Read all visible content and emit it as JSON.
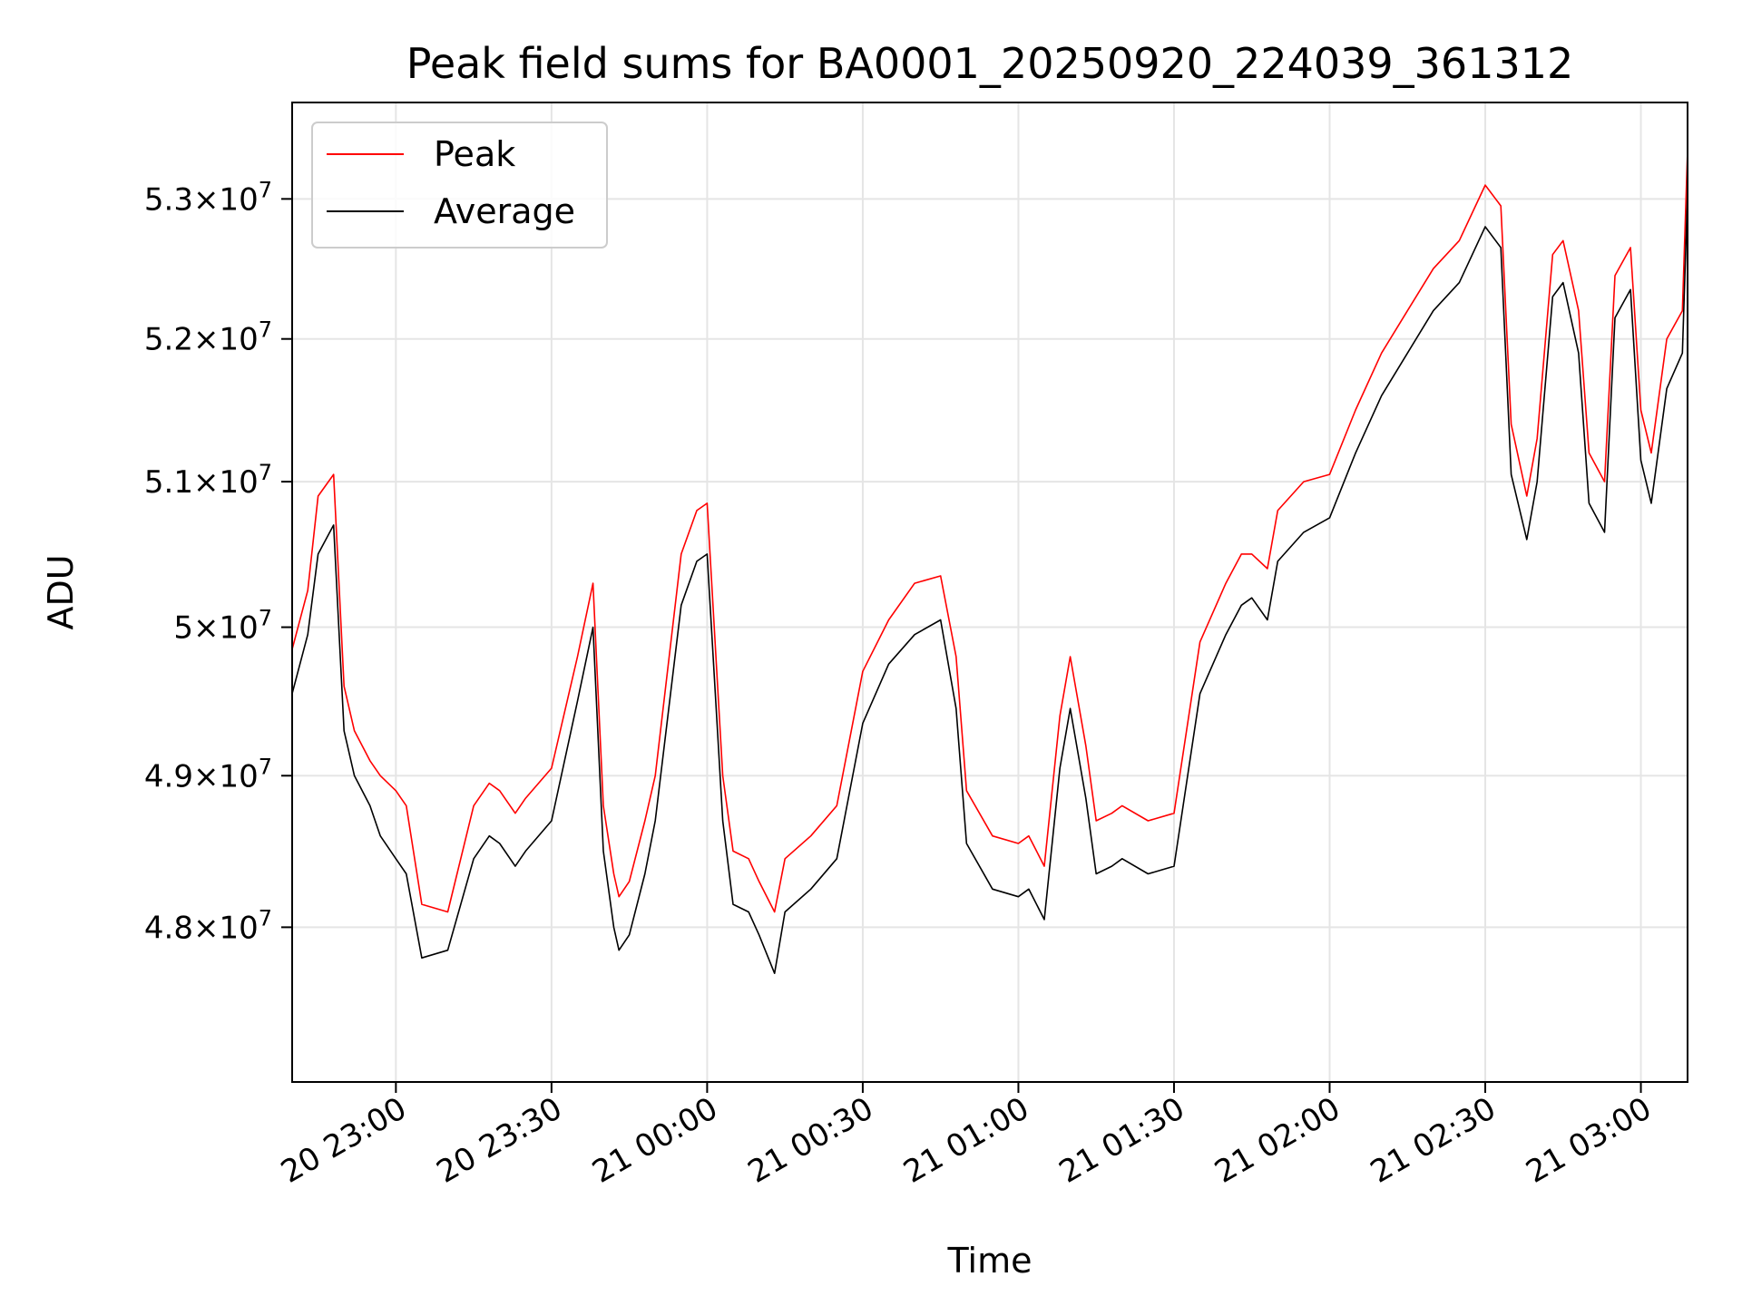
{
  "chart_data": {
    "type": "line",
    "title": "Peak field sums for BA0001_20250920_224039_361312",
    "xlabel": "Time",
    "ylabel": "ADU",
    "x_start": "2025-09-20 22:40",
    "x_end": "2025-09-21 03:09",
    "xlim": [
      "2025-09-20 22:40",
      "2025-09-21 03:09"
    ],
    "ylim": [
      47.0,
      53.7
    ],
    "y_unit_multiplier": "×10^7",
    "y_scale": "log",
    "grid": true,
    "legend_position": "upper-left",
    "x_ticks": [
      {
        "t": "2025-09-20 23:00",
        "label": "20 23:00"
      },
      {
        "t": "2025-09-20 23:30",
        "label": "20 23:30"
      },
      {
        "t": "2025-09-21 00:00",
        "label": "21 00:00"
      },
      {
        "t": "2025-09-21 00:30",
        "label": "21 00:30"
      },
      {
        "t": "2025-09-21 01:00",
        "label": "21 01:00"
      },
      {
        "t": "2025-09-21 01:30",
        "label": "21 01:30"
      },
      {
        "t": "2025-09-21 02:00",
        "label": "21 02:00"
      },
      {
        "t": "2025-09-21 02:30",
        "label": "21 02:30"
      },
      {
        "t": "2025-09-21 03:00",
        "label": "21 03:00"
      }
    ],
    "y_ticks": [
      {
        "value": 48.0,
        "mantissa": "4.8",
        "exponent": "7"
      },
      {
        "value": 49.0,
        "mantissa": "4.9",
        "exponent": "7"
      },
      {
        "value": 50.0,
        "mantissa": "5",
        "exponent": "7"
      },
      {
        "value": 51.0,
        "mantissa": "5.1",
        "exponent": "7"
      },
      {
        "value": 52.0,
        "mantissa": "5.2",
        "exponent": "7"
      },
      {
        "value": 53.0,
        "mantissa": "5.3",
        "exponent": "7"
      }
    ],
    "x": [
      "2025-09-20 22:40",
      "2025-09-20 22:43",
      "2025-09-20 22:45",
      "2025-09-20 22:48",
      "2025-09-20 22:50",
      "2025-09-20 22:52",
      "2025-09-20 22:55",
      "2025-09-20 22:57",
      "2025-09-20 23:00",
      "2025-09-20 23:02",
      "2025-09-20 23:05",
      "2025-09-20 23:10",
      "2025-09-20 23:15",
      "2025-09-20 23:18",
      "2025-09-20 23:20",
      "2025-09-20 23:23",
      "2025-09-20 23:25",
      "2025-09-20 23:30",
      "2025-09-20 23:35",
      "2025-09-20 23:38",
      "2025-09-20 23:40",
      "2025-09-20 23:42",
      "2025-09-20 23:43",
      "2025-09-20 23:45",
      "2025-09-20 23:48",
      "2025-09-20 23:50",
      "2025-09-20 23:55",
      "2025-09-20 23:58",
      "2025-09-21 00:00",
      "2025-09-21 00:03",
      "2025-09-21 00:05",
      "2025-09-21 00:08",
      "2025-09-21 00:10",
      "2025-09-21 00:13",
      "2025-09-21 00:15",
      "2025-09-21 00:20",
      "2025-09-21 00:25",
      "2025-09-21 00:30",
      "2025-09-21 00:35",
      "2025-09-21 00:40",
      "2025-09-21 00:45",
      "2025-09-21 00:48",
      "2025-09-21 00:50",
      "2025-09-21 00:55",
      "2025-09-21 01:00",
      "2025-09-21 01:02",
      "2025-09-21 01:05",
      "2025-09-21 01:08",
      "2025-09-21 01:10",
      "2025-09-21 01:13",
      "2025-09-21 01:15",
      "2025-09-21 01:18",
      "2025-09-21 01:20",
      "2025-09-21 01:25",
      "2025-09-21 01:30",
      "2025-09-21 01:35",
      "2025-09-21 01:40",
      "2025-09-21 01:43",
      "2025-09-21 01:45",
      "2025-09-21 01:48",
      "2025-09-21 01:50",
      "2025-09-21 01:55",
      "2025-09-21 02:00",
      "2025-09-21 02:05",
      "2025-09-21 02:10",
      "2025-09-21 02:15",
      "2025-09-21 02:20",
      "2025-09-21 02:25",
      "2025-09-21 02:30",
      "2025-09-21 02:33",
      "2025-09-21 02:35",
      "2025-09-21 02:38",
      "2025-09-21 02:40",
      "2025-09-21 02:43",
      "2025-09-21 02:45",
      "2025-09-21 02:48",
      "2025-09-21 02:50",
      "2025-09-21 02:53",
      "2025-09-21 02:55",
      "2025-09-21 02:58",
      "2025-09-21 03:00",
      "2025-09-21 03:02",
      "2025-09-21 03:05",
      "2025-09-21 03:08",
      "2025-09-21 03:09"
    ],
    "series": [
      {
        "name": "Peak",
        "color": "#ff0000",
        "values": [
          49.85,
          50.25,
          50.9,
          51.05,
          49.6,
          49.3,
          49.1,
          49.0,
          48.9,
          48.8,
          48.15,
          48.1,
          48.8,
          48.95,
          48.9,
          48.75,
          48.85,
          49.05,
          49.8,
          50.3,
          48.8,
          48.35,
          48.2,
          48.3,
          48.7,
          49.0,
          50.5,
          50.8,
          50.85,
          49.0,
          48.5,
          48.45,
          48.3,
          48.1,
          48.45,
          48.6,
          48.8,
          49.7,
          50.05,
          50.3,
          50.35,
          49.8,
          48.9,
          48.6,
          48.55,
          48.6,
          48.4,
          49.4,
          49.8,
          49.2,
          48.7,
          48.75,
          48.8,
          48.7,
          48.75,
          49.9,
          50.3,
          50.5,
          50.5,
          50.4,
          50.8,
          51.0,
          51.05,
          51.5,
          51.9,
          52.2,
          52.5,
          52.7,
          53.1,
          52.95,
          51.4,
          50.9,
          51.3,
          52.6,
          52.7,
          52.2,
          51.2,
          51.0,
          52.45,
          52.65,
          51.5,
          51.2,
          52.0,
          52.2,
          53.35
        ]
      },
      {
        "name": "Average",
        "color": "#000000",
        "values": [
          49.55,
          49.95,
          50.5,
          50.7,
          49.3,
          49.0,
          48.8,
          48.6,
          48.45,
          48.35,
          47.8,
          47.85,
          48.45,
          48.6,
          48.55,
          48.4,
          48.5,
          48.7,
          49.5,
          50.0,
          48.5,
          48.0,
          47.85,
          47.95,
          48.35,
          48.7,
          50.15,
          50.45,
          50.5,
          48.7,
          48.15,
          48.1,
          47.95,
          47.7,
          48.1,
          48.25,
          48.45,
          49.35,
          49.75,
          49.95,
          50.05,
          49.45,
          48.55,
          48.25,
          48.2,
          48.25,
          48.05,
          49.05,
          49.45,
          48.85,
          48.35,
          48.4,
          48.45,
          48.35,
          48.4,
          49.55,
          49.95,
          50.15,
          50.2,
          50.05,
          50.45,
          50.65,
          50.75,
          51.2,
          51.6,
          51.9,
          52.2,
          52.4,
          52.8,
          52.65,
          51.05,
          50.6,
          51.0,
          52.3,
          52.4,
          51.9,
          50.85,
          50.65,
          52.15,
          52.35,
          51.15,
          50.85,
          51.65,
          51.9,
          53.05
        ]
      }
    ]
  }
}
